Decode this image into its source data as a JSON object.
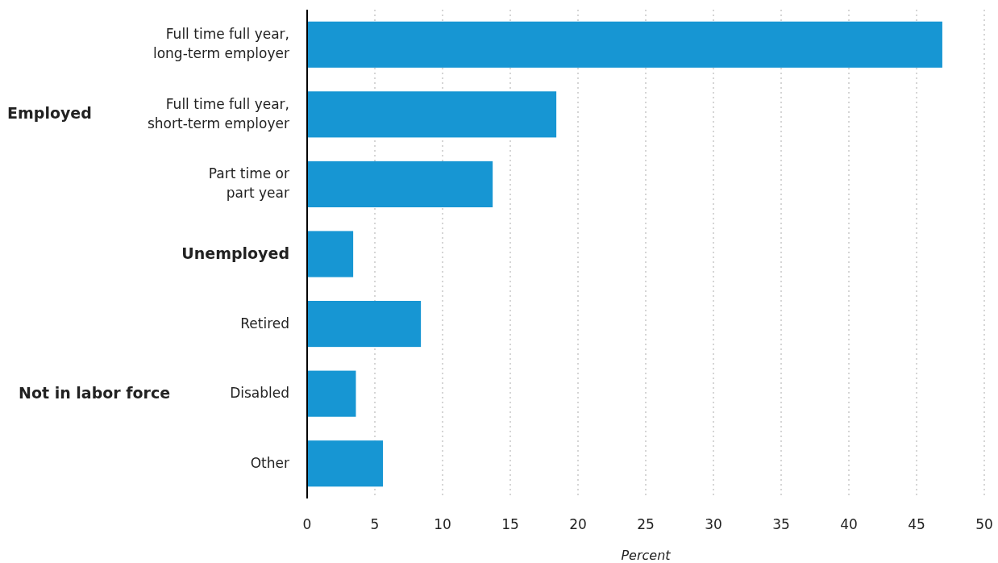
{
  "chart_data": {
    "type": "bar",
    "orientation": "horizontal",
    "xlabel": "Percent",
    "categories": [
      "Full time full year,\nlong-term employer",
      "Full time full year,\nshort-term employer",
      "Part time or\npart year",
      "Unemployed",
      "Retired",
      "Disabled",
      "Other"
    ],
    "values": [
      46.9,
      18.4,
      13.7,
      3.4,
      8.4,
      3.6,
      5.6
    ],
    "color": "#1796d3",
    "xlim": [
      0,
      50
    ],
    "xticks": [
      0,
      5,
      10,
      15,
      20,
      25,
      30,
      35,
      40,
      45,
      50
    ],
    "grid": "x",
    "annotations": [
      "Employed",
      "Not in labor force"
    ]
  }
}
